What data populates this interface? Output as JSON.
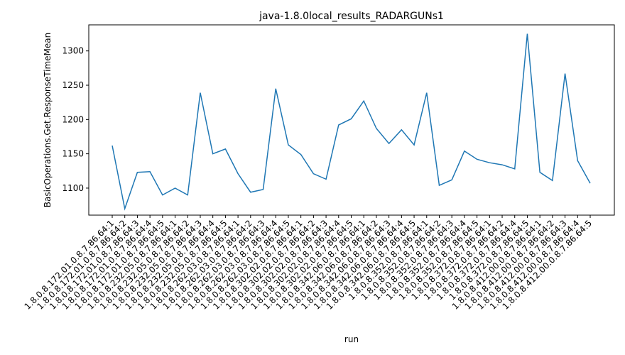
{
  "chart_data": {
    "type": "line",
    "title": "java-1.8.0local_results_RADARGUNs1",
    "xlabel": "run",
    "ylabel": "BasicOperations.Get.ResponseTimeMean",
    "categories": [
      "1.8.0.8.172.01.0.8.7.86.64:1",
      "1.8.0.8.172.01.0.8.7.86.64:2",
      "1.8.0.8.172.01.0.8.7.86.64:3",
      "1.8.0.8.172.01.0.8.7.86.64:4",
      "1.8.0.8.172.01.0.8.7.86.64:5",
      "1.8.0.8.232.05.0.8.7.86.64:1",
      "1.8.0.8.232.05.0.8.7.86.64:2",
      "1.8.0.8.232.05.0.8.7.86.64:3",
      "1.8.0.8.232.05.0.8.7.86.64:4",
      "1.8.0.8.232.05.0.8.7.86.64:5",
      "1.8.0.8.262.03.0.8.7.86.64:1",
      "1.8.0.8.262.03.0.8.7.86.64:2",
      "1.8.0.8.262.03.0.8.7.86.64:3",
      "1.8.0.8.262.03.0.8.7.86.64:4",
      "1.8.0.8.262.03.0.8.7.86.64:5",
      "1.8.0.8.302.02.0.8.7.86.64:1",
      "1.8.0.8.302.02.0.8.7.86.64:2",
      "1.8.0.8.302.02.0.8.7.86.64:3",
      "1.8.0.8.302.02.0.8.7.86.64:4",
      "1.8.0.8.302.02.0.8.7.86.64:5",
      "1.8.0.8.342.06.0.8.7.86.64:1",
      "1.8.0.8.342.06.0.8.7.86.64:2",
      "1.8.0.8.342.06.0.8.7.86.64:3",
      "1.8.0.8.342.06.0.8.7.86.64:4",
      "1.8.0.8.342.06.0.8.7.86.64:5",
      "1.8.0.8.352.0.8.7.86.64:1",
      "1.8.0.8.352.0.8.7.86.64:2",
      "1.8.0.8.352.0.8.7.86.64:3",
      "1.8.0.8.352.0.8.7.86.64:4",
      "1.8.0.8.352.0.8.7.86.64:5",
      "1.8.0.8.372.0.8.7.86.64:1",
      "1.8.0.8.372.0.8.7.86.64:2",
      "1.8.0.8.372.0.8.7.86.64:4",
      "1.8.0.8.372.0.8.7.86.64:5",
      "1.8.0.8.412.00.0.8.7.86.64:1",
      "1.8.0.8.412.00.0.8.7.86.64:2",
      "1.8.0.8.412.00.0.8.7.86.64:3",
      "1.8.0.8.412.00.0.8.7.86.64:4",
      "1.8.0.8.412.00.0.8.7.86.64:5"
    ],
    "series": [
      {
        "name": "BasicOperations.Get.ResponseTimeMean",
        "color": "#1f77b4",
        "values": [
          1162,
          1070,
          1123,
          1124,
          1090,
          1100,
          1090,
          1239,
          1150,
          1157,
          1121,
          1094,
          1098,
          1245,
          1163,
          1149,
          1121,
          1113,
          1192,
          1201,
          1227,
          1187,
          1165,
          1185,
          1163,
          1239,
          1104,
          1112,
          1154,
          1142,
          1137,
          1134,
          1128,
          1325,
          1123,
          1111,
          1267,
          1140,
          1107
        ]
      }
    ],
    "ylim": [
      1060.6,
      1338
    ],
    "yticks": [
      1100,
      1150,
      1200,
      1250,
      1300
    ]
  }
}
